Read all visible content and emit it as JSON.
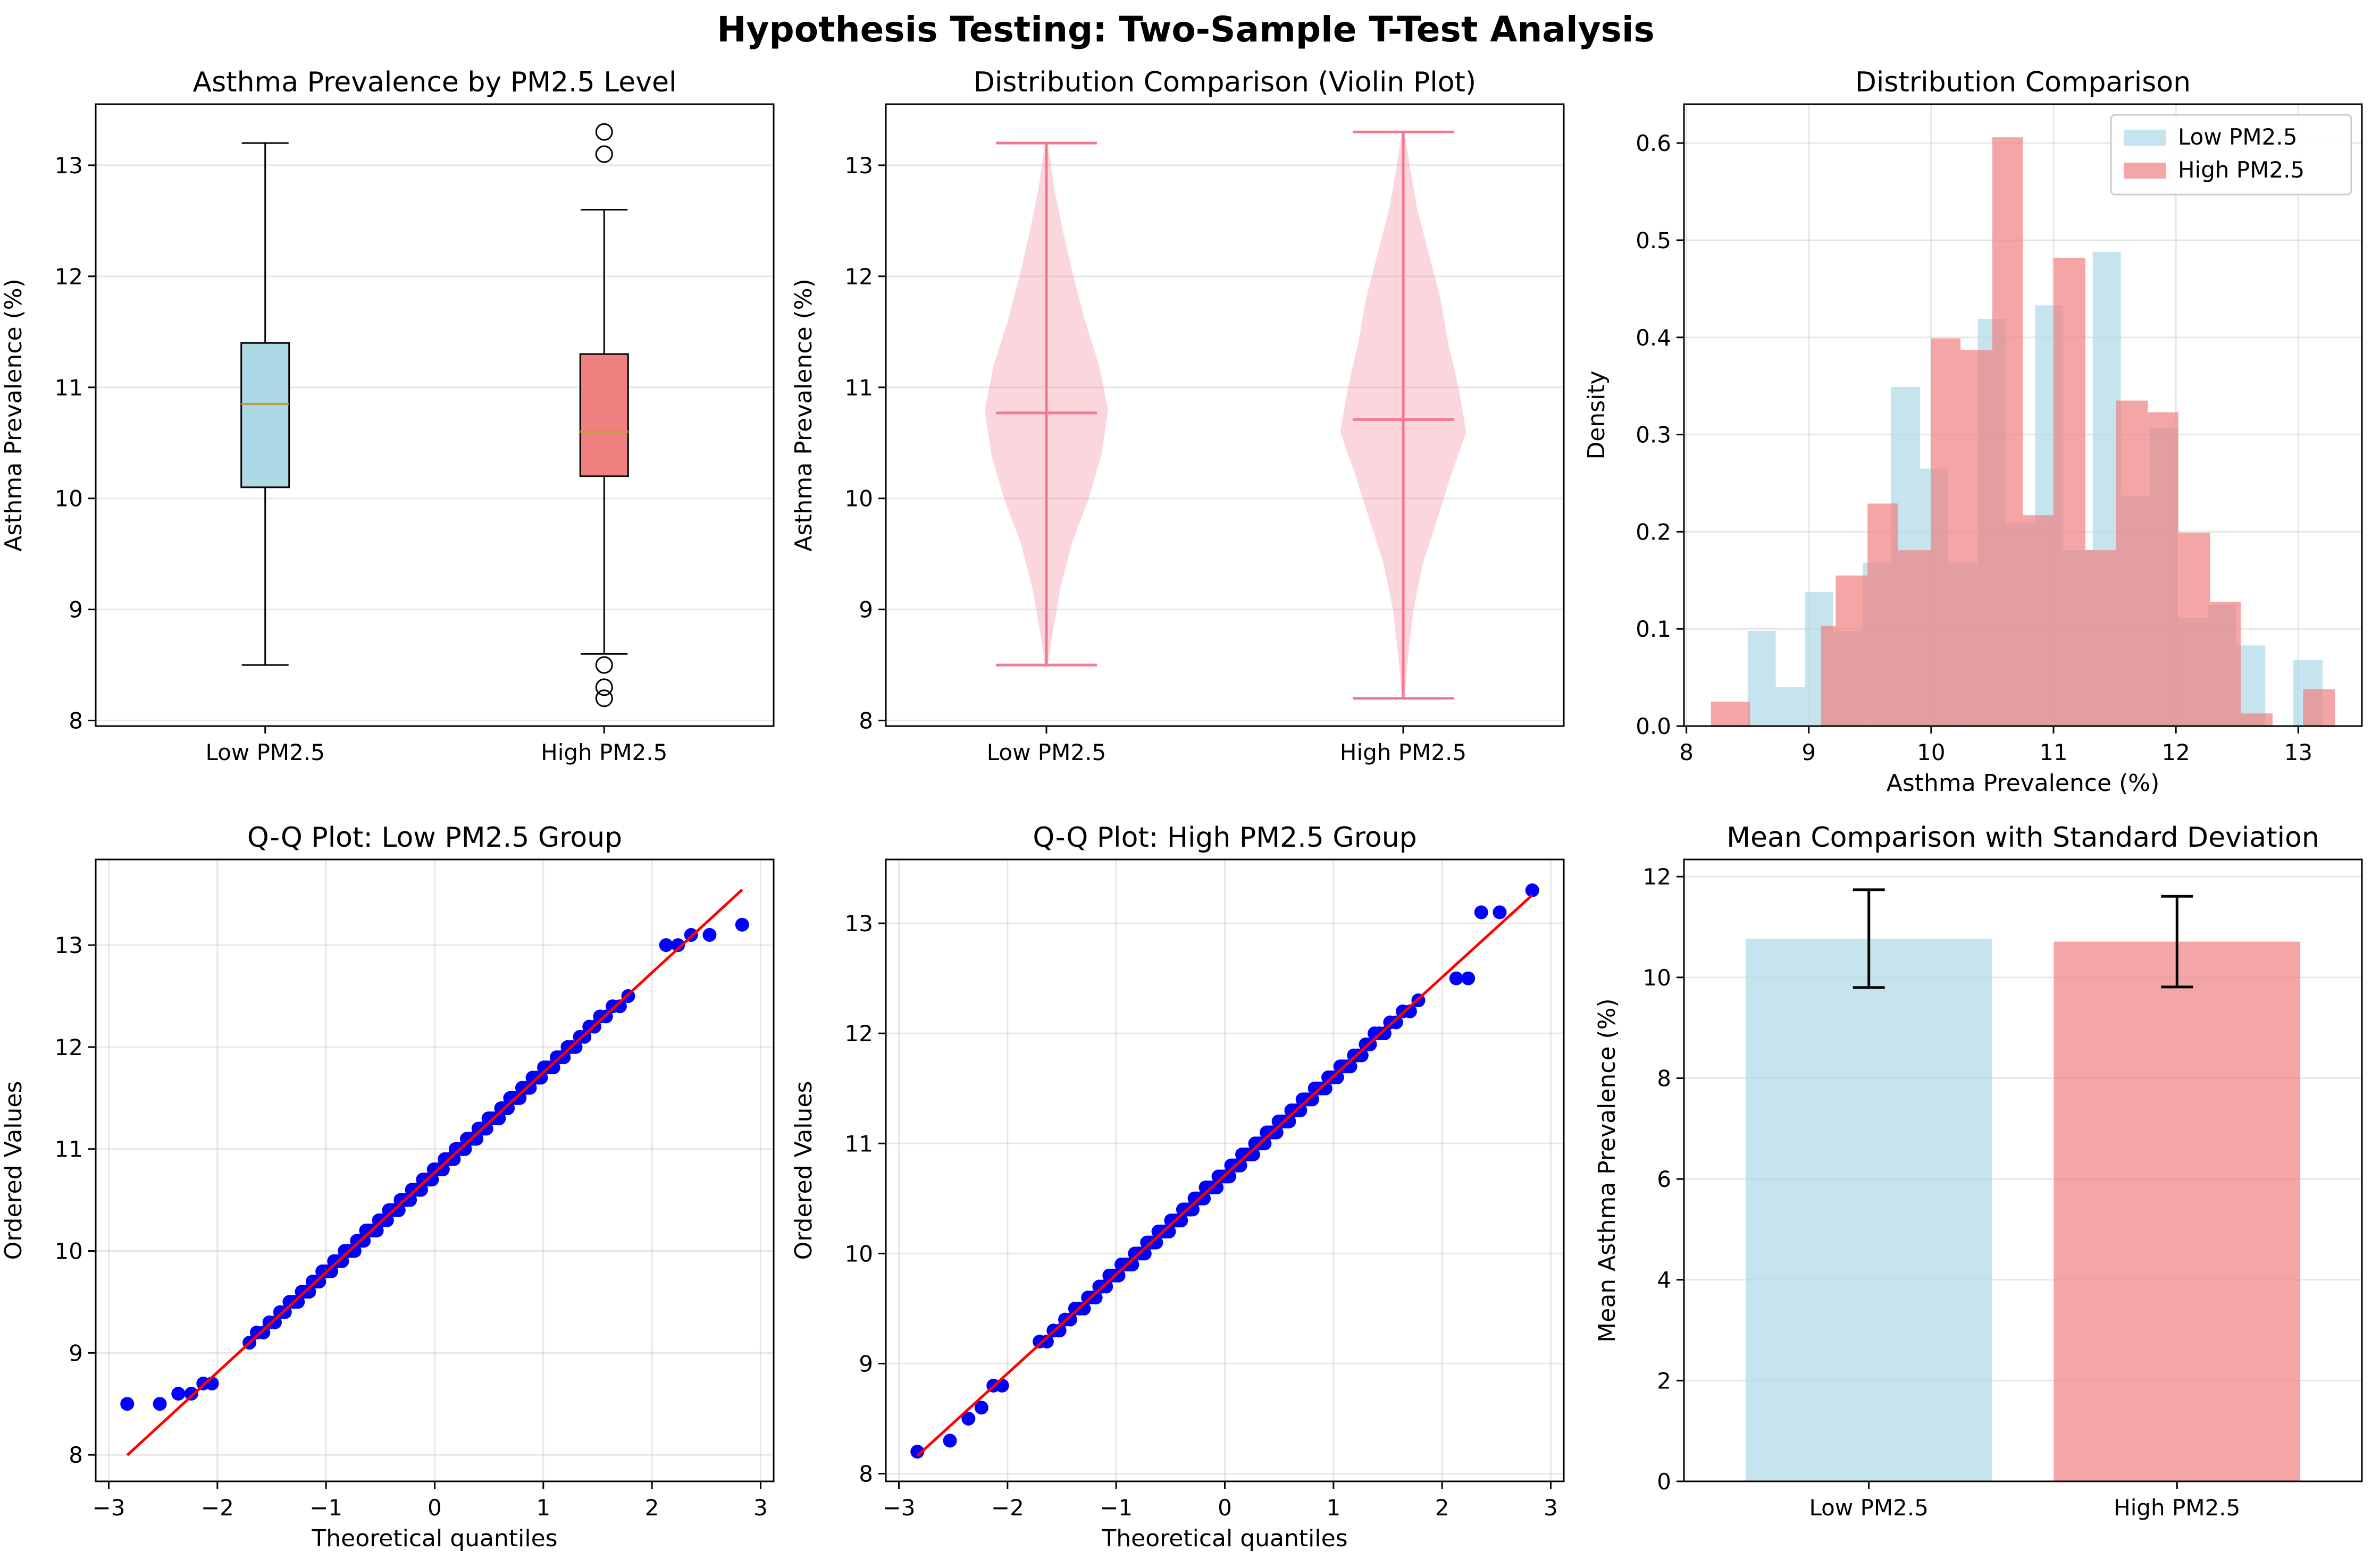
{
  "figure": {
    "suptitle": "Hypothesis Testing: Two-Sample T-Test Analysis"
  },
  "chart_data": [
    {
      "id": "boxplot",
      "type": "box",
      "title": "Asthma Prevalence by PM2.5 Level",
      "xlabel": "",
      "ylabel": "Asthma Prevalence (%)",
      "ylim": [
        7.95,
        13.55
      ],
      "yticks": [
        8,
        9,
        10,
        11,
        12,
        13
      ],
      "grid": true,
      "categories": [
        "Low PM2.5",
        "High PM2.5"
      ],
      "colors": [
        "#add8e6",
        "#f08080"
      ],
      "boxes": [
        {
          "q1": 10.1,
          "median": 10.85,
          "q3": 11.4,
          "whisker_low": 8.5,
          "whisker_high": 13.2,
          "outliers": []
        },
        {
          "q1": 10.2,
          "median": 10.6,
          "q3": 11.3,
          "whisker_low": 8.6,
          "whisker_high": 12.6,
          "outliers": [
            13.3,
            13.1,
            8.5,
            8.3,
            8.2
          ]
        }
      ]
    },
    {
      "id": "violin",
      "type": "violin",
      "title": "Distribution Comparison (Violin Plot)",
      "xlabel": "",
      "ylabel": "Asthma Prevalence (%)",
      "ylim": [
        7.95,
        13.55
      ],
      "yticks": [
        8,
        9,
        10,
        11,
        12,
        13
      ],
      "grid": true,
      "categories": [
        "Low PM2.5",
        "High PM2.5"
      ],
      "color": "#f37890",
      "violins": [
        {
          "min": 8.5,
          "mean": 10.77,
          "max": 13.2,
          "profile": [
            [
              8.5,
              0.01
            ],
            [
              8.8,
              0.05
            ],
            [
              9.2,
              0.11
            ],
            [
              9.6,
              0.2
            ],
            [
              10.0,
              0.33
            ],
            [
              10.4,
              0.43
            ],
            [
              10.8,
              0.48
            ],
            [
              11.2,
              0.41
            ],
            [
              11.6,
              0.3
            ],
            [
              12.0,
              0.21
            ],
            [
              12.4,
              0.13
            ],
            [
              12.8,
              0.06
            ],
            [
              13.2,
              0.01
            ]
          ]
        },
        {
          "min": 8.2,
          "mean": 10.71,
          "max": 13.3,
          "profile": [
            [
              8.2,
              0.01
            ],
            [
              8.6,
              0.04
            ],
            [
              9.0,
              0.08
            ],
            [
              9.4,
              0.15
            ],
            [
              9.8,
              0.26
            ],
            [
              10.2,
              0.37
            ],
            [
              10.6,
              0.49
            ],
            [
              11.0,
              0.43
            ],
            [
              11.4,
              0.35
            ],
            [
              11.8,
              0.29
            ],
            [
              12.2,
              0.2
            ],
            [
              12.6,
              0.11
            ],
            [
              13.0,
              0.05
            ],
            [
              13.3,
              0.01
            ]
          ]
        }
      ]
    },
    {
      "id": "histogram",
      "type": "histogram",
      "title": "Distribution Comparison",
      "xlabel": "Asthma Prevalence (%)",
      "ylabel": "Density",
      "xlim": [
        7.98,
        13.52
      ],
      "ylim": [
        0,
        0.64
      ],
      "xticks": [
        8,
        9,
        10,
        11,
        12,
        13
      ],
      "yticks": [
        0.0,
        0.1,
        0.2,
        0.3,
        0.4,
        0.5,
        0.6
      ],
      "ytick_labels": [
        "0.0",
        "0.1",
        "0.2",
        "0.3",
        "0.4",
        "0.5",
        "0.6"
      ],
      "grid": true,
      "legend_position": "top-right",
      "series": [
        {
          "name": "Low PM2.5",
          "color": "#add8e6",
          "bins": [
            [
              8.5,
              8.73,
              0.098
            ],
            [
              8.73,
              8.97,
              0.04
            ],
            [
              8.97,
              9.2,
              0.138
            ],
            [
              9.2,
              9.44,
              0.098
            ],
            [
              9.44,
              9.67,
              0.168
            ],
            [
              9.67,
              9.91,
              0.349
            ],
            [
              9.91,
              10.14,
              0.265
            ],
            [
              10.14,
              10.38,
              0.168
            ],
            [
              10.38,
              10.61,
              0.419
            ],
            [
              10.61,
              10.85,
              0.209
            ],
            [
              10.85,
              11.08,
              0.433
            ],
            [
              11.08,
              11.32,
              0.181
            ],
            [
              11.32,
              11.55,
              0.488
            ],
            [
              11.55,
              11.79,
              0.237
            ],
            [
              11.79,
              12.02,
              0.307
            ],
            [
              12.02,
              12.26,
              0.111
            ],
            [
              12.26,
              12.49,
              0.125
            ],
            [
              12.49,
              12.73,
              0.083
            ],
            [
              12.73,
              12.96,
              0.0
            ],
            [
              12.96,
              13.2,
              0.068
            ]
          ]
        },
        {
          "name": "High PM2.5",
          "color": "#f08080",
          "bins": [
            [
              8.2,
              8.52,
              0.025
            ],
            [
              8.52,
              8.85,
              0.0
            ],
            [
              8.85,
              9.1,
              0.0
            ],
            [
              9.1,
              9.22,
              0.103
            ],
            [
              9.22,
              9.48,
              0.155
            ],
            [
              9.48,
              9.73,
              0.229
            ],
            [
              9.73,
              10.0,
              0.181
            ],
            [
              10.0,
              10.24,
              0.399
            ],
            [
              10.24,
              10.5,
              0.387
            ],
            [
              10.5,
              10.75,
              0.606
            ],
            [
              10.75,
              11.0,
              0.217
            ],
            [
              11.0,
              11.26,
              0.482
            ],
            [
              11.26,
              11.51,
              0.181
            ],
            [
              11.51,
              11.77,
              0.335
            ],
            [
              11.77,
              12.02,
              0.323
            ],
            [
              12.02,
              12.28,
              0.199
            ],
            [
              12.28,
              12.53,
              0.128
            ],
            [
              12.53,
              12.79,
              0.013
            ],
            [
              12.79,
              13.04,
              0.0
            ],
            [
              13.04,
              13.3,
              0.038
            ]
          ]
        }
      ]
    },
    {
      "id": "qq_low",
      "type": "scatter",
      "title": "Q-Q Plot: Low PM2.5 Group",
      "xlabel": "Theoretical quantiles",
      "ylabel": "Ordered Values",
      "xlim": [
        -3.12,
        3.12
      ],
      "ylim": [
        7.74,
        13.84
      ],
      "xticks": [
        -3,
        -2,
        -1,
        0,
        1,
        2,
        3
      ],
      "xtick_labels": [
        "−3",
        "−2",
        "−1",
        "0",
        "1",
        "2",
        "3"
      ],
      "yticks": [
        8,
        9,
        10,
        11,
        12,
        13
      ],
      "grid": true,
      "point_color": "#0000ff",
      "line_color": "#ff0000",
      "n": 150,
      "fit_line": {
        "intercept": 10.77,
        "slope": 0.98,
        "x_range": [
          -2.83,
          2.83
        ]
      },
      "points": [
        [
          -2.83,
          8.5
        ],
        [
          -2.53,
          8.5
        ],
        [
          -2.36,
          8.6
        ],
        [
          -2.24,
          8.6
        ],
        [
          -2.13,
          8.7
        ],
        [
          -2.05,
          8.7
        ],
        [
          2.13,
          13.0
        ],
        [
          2.24,
          13.0
        ],
        [
          2.36,
          13.1
        ],
        [
          2.53,
          13.1
        ],
        [
          2.83,
          13.2
        ]
      ]
    },
    {
      "id": "qq_high",
      "type": "scatter",
      "title": "Q-Q Plot: High PM2.5 Group",
      "xlabel": "Theoretical quantiles",
      "ylabel": "Ordered Values",
      "xlim": [
        -3.12,
        3.12
      ],
      "ylim": [
        7.93,
        13.58
      ],
      "xticks": [
        -3,
        -2,
        -1,
        0,
        1,
        2,
        3
      ],
      "xtick_labels": [
        "−3",
        "−2",
        "−1",
        "0",
        "1",
        "2",
        "3"
      ],
      "yticks": [
        8,
        9,
        10,
        11,
        12,
        13
      ],
      "grid": true,
      "point_color": "#0000ff",
      "line_color": "#ff0000",
      "n": 150,
      "fit_line": {
        "intercept": 10.71,
        "slope": 0.9,
        "x_range": [
          -2.83,
          2.83
        ]
      },
      "points": [
        [
          -2.83,
          8.2
        ],
        [
          -2.53,
          8.3
        ],
        [
          -2.36,
          8.5
        ],
        [
          -2.24,
          8.6
        ],
        [
          -2.13,
          8.8
        ],
        [
          -2.05,
          8.8
        ],
        [
          2.13,
          12.5
        ],
        [
          2.24,
          12.5
        ],
        [
          2.36,
          13.1
        ],
        [
          2.53,
          13.1
        ],
        [
          2.83,
          13.3
        ]
      ]
    },
    {
      "id": "mean_bar",
      "type": "bar",
      "title": "Mean Comparison with Standard Deviation",
      "xlabel": "",
      "ylabel": "Mean Asthma Prevalence (%)",
      "ylim": [
        0,
        12.34
      ],
      "yticks": [
        0,
        2,
        4,
        6,
        8,
        10,
        12
      ],
      "grid": true,
      "categories": [
        "Low PM2.5",
        "High PM2.5"
      ],
      "colors": [
        "#add8e6",
        "#f08080"
      ],
      "values": [
        10.77,
        10.71
      ],
      "errors": [
        0.97,
        0.9
      ]
    }
  ]
}
